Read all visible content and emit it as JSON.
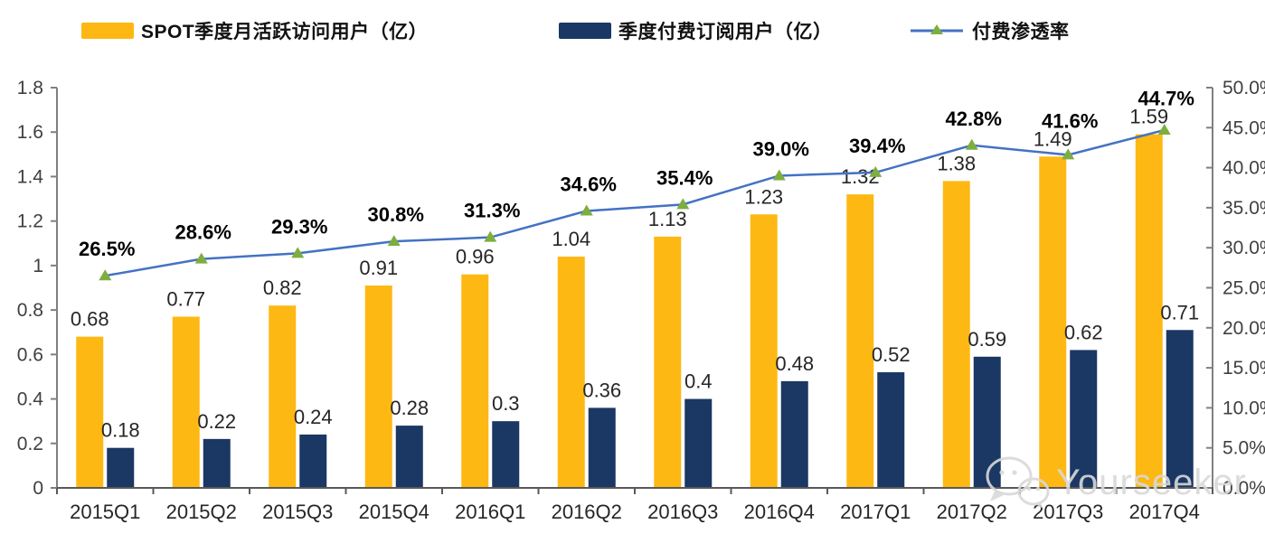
{
  "legend": {
    "items": [
      {
        "label": "SPOT季度月活跃访问用户（亿）",
        "swatch": "bar",
        "series": "mau"
      },
      {
        "label": "季度付费订阅用户（亿）",
        "swatch": "bar",
        "series": "subs"
      },
      {
        "label": "付费渗透率",
        "swatch": "line",
        "series": "penetration"
      }
    ]
  },
  "colors": {
    "mau_bar": "#FDB813",
    "subs_bar": "#1B3764",
    "line": "#4472C4",
    "marker": "#7EAE3E",
    "axis": "#808080",
    "bottom_axis": "#595959",
    "tick_label": "#404040",
    "value_label": "#262626",
    "percent_label": "#000000",
    "watermark": "#d9d9d9"
  },
  "chart_data": {
    "type": "bar",
    "subtype": "grouped-bars-with-line",
    "categories": [
      "2015Q1",
      "2015Q2",
      "2015Q3",
      "2015Q4",
      "2016Q1",
      "2016Q2",
      "2016Q3",
      "2016Q4",
      "2017Q1",
      "2017Q2",
      "2017Q3",
      "2017Q4"
    ],
    "series": [
      {
        "name": "SPOT季度月活跃访问用户（亿）",
        "type": "bar",
        "axis": "left",
        "values": [
          0.68,
          0.77,
          0.82,
          0.91,
          0.96,
          1.04,
          1.13,
          1.23,
          1.32,
          1.38,
          1.49,
          1.59
        ],
        "labels": [
          "0.68",
          "0.77",
          "0.82",
          "0.91",
          "0.96",
          "1.04",
          "1.13",
          "1.23",
          "1.32",
          "1.38",
          "1.49",
          "1.59"
        ]
      },
      {
        "name": "季度付费订阅用户（亿）",
        "type": "bar",
        "axis": "left",
        "values": [
          0.18,
          0.22,
          0.24,
          0.28,
          0.3,
          0.36,
          0.4,
          0.48,
          0.52,
          0.59,
          0.62,
          0.71
        ],
        "labels": [
          "0.18",
          "0.22",
          "0.24",
          "0.28",
          "0.3",
          "0.36",
          "0.4",
          "0.48",
          "0.52",
          "0.59",
          "0.62",
          "0.71"
        ]
      },
      {
        "name": "付费渗透率",
        "type": "line",
        "axis": "right",
        "marker": "triangle",
        "values": [
          26.5,
          28.6,
          29.3,
          30.8,
          31.3,
          34.6,
          35.4,
          39.0,
          39.4,
          42.8,
          41.6,
          44.7
        ],
        "labels": [
          "26.5%",
          "28.6%",
          "29.3%",
          "30.8%",
          "31.3%",
          "34.6%",
          "35.4%",
          "39.0%",
          "39.4%",
          "42.8%",
          "41.6%",
          "44.7%"
        ]
      }
    ],
    "left_axis": {
      "min": 0,
      "max": 1.8,
      "step": 0.2,
      "ticks": [
        "1.8",
        "1.6",
        "1.4",
        "1.2",
        "1",
        "0.8",
        "0.6",
        "0.4",
        "0.2",
        "0"
      ]
    },
    "right_axis": {
      "min": 0,
      "max": 50,
      "step": 5,
      "ticks": [
        "50.0%",
        "45.0%",
        "40.0%",
        "35.0%",
        "30.0%",
        "25.0%",
        "20.0%",
        "15.0%",
        "10.0%",
        "5.0%",
        "0.0%"
      ]
    },
    "grid": false,
    "legend_position": "top"
  },
  "watermark": {
    "text": "Yourseeker"
  }
}
